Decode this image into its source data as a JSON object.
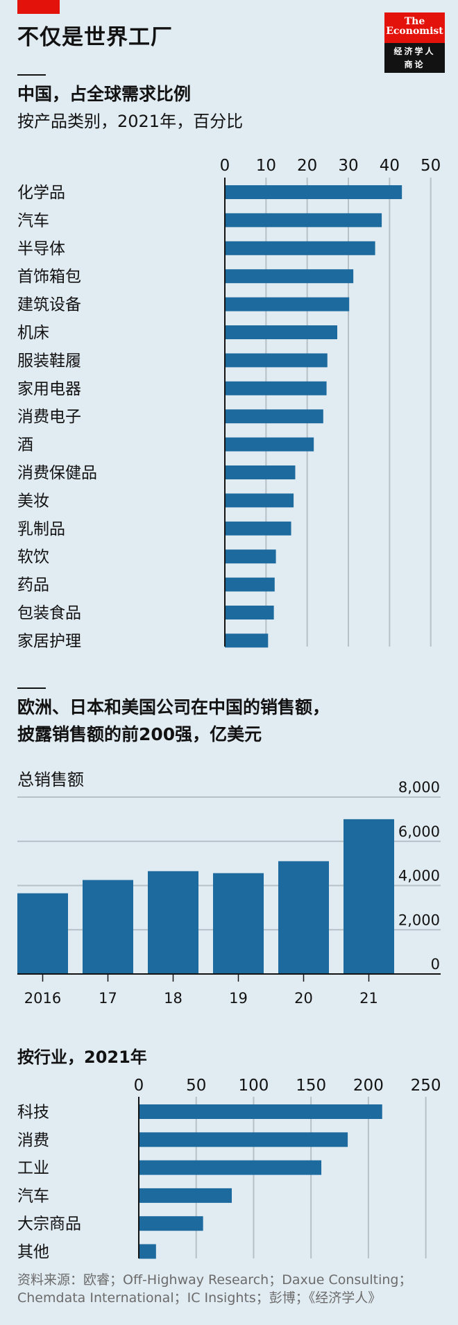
{
  "header": {
    "title": "不仅是世界工厂",
    "logo": {
      "line1": "The",
      "line2": "Economist",
      "line3": "经济学人",
      "line4": "商论"
    }
  },
  "colors": {
    "background": "#e1ebf2",
    "bar": "#1d6a9e",
    "grid": "#b5c0c8",
    "accent_red": "#e3120b"
  },
  "chart_data": [
    {
      "type": "bar",
      "orientation": "horizontal",
      "title": "中国，占全球需求比例",
      "subtitle": "按产品类别，2021年，百分比",
      "categories": [
        "化学品",
        "汽车",
        "半导体",
        "首饰箱包",
        "建筑设备",
        "机床",
        "服装鞋履",
        "家用电器",
        "消费电子",
        "酒",
        "消费保健品",
        "美妆",
        "乳制品",
        "软饮",
        "药品",
        "包装食品",
        "家居护理"
      ],
      "values": [
        43.0,
        38.1,
        36.5,
        31.2,
        30.2,
        27.3,
        24.9,
        24.7,
        23.9,
        21.6,
        17.1,
        16.7,
        16.1,
        12.4,
        12.1,
        11.9,
        10.5
      ],
      "xlim": [
        0,
        50
      ],
      "ticks": [
        "0",
        "10",
        "20",
        "30",
        "40",
        "50"
      ],
      "tick_values": [
        0,
        10,
        20,
        30,
        40,
        50
      ],
      "grid": true
    },
    {
      "type": "bar",
      "orientation": "vertical",
      "title": "欧洲、日本和美国公司在中国的销售额，",
      "title_line2": "披露销售额的前200强，亿美元",
      "panel_title": "总销售额",
      "categories": [
        "2016",
        "17",
        "18",
        "19",
        "20",
        "21"
      ],
      "values": [
        3650,
        4250,
        4650,
        4560,
        5100,
        7000
      ],
      "ylim": [
        0,
        8000
      ],
      "ticks": [
        "0",
        "2,000",
        "4,000",
        "6,000",
        "8,000"
      ],
      "tick_values": [
        0,
        2000,
        4000,
        6000,
        8000
      ],
      "grid": true,
      "axis_side": "right"
    },
    {
      "type": "bar",
      "orientation": "horizontal",
      "panel_title": "按行业，2021年",
      "categories": [
        "科技",
        "消费",
        "工业",
        "汽车",
        "大宗商品",
        "其他"
      ],
      "values": [
        212,
        182,
        159,
        81,
        56,
        15
      ],
      "xlim": [
        0,
        250
      ],
      "ticks": [
        "0",
        "50",
        "100",
        "150",
        "200",
        "250"
      ],
      "tick_values": [
        0,
        50,
        100,
        150,
        200,
        250
      ],
      "grid": true
    }
  ],
  "source": "资料来源：欧睿；Off-Highway Research；Daxue Consulting；Chemdata International；IC Insights；彭博；《经济学人》"
}
